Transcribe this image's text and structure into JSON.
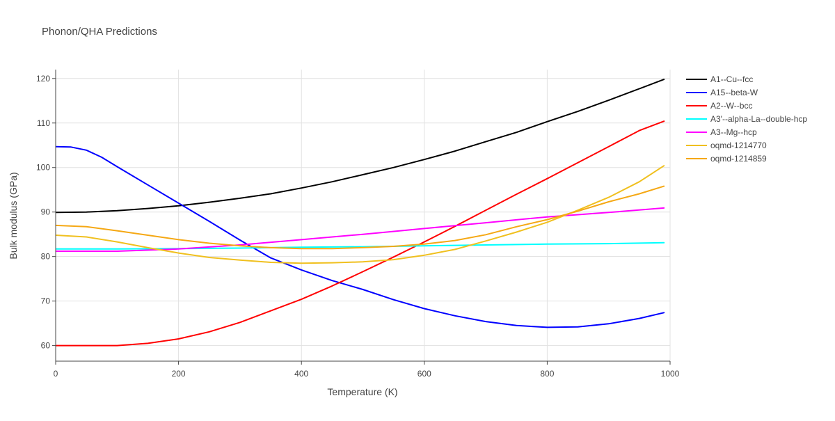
{
  "chart_data": {
    "type": "line",
    "title": "Phonon/QHA Predictions",
    "xlabel": "Temperature (K)",
    "ylabel": "Bulk modulus (GPa)",
    "xlim": [
      0,
      1000
    ],
    "ylim": [
      56.5,
      122
    ],
    "xticks": [
      0,
      200,
      400,
      600,
      800,
      1000
    ],
    "yticks": [
      60,
      70,
      80,
      90,
      100,
      110,
      120
    ],
    "grid": true,
    "legend_position": "right",
    "series": [
      {
        "name": "A1--Cu--fcc",
        "color": "#000000",
        "x": [
          0,
          50,
          100,
          150,
          200,
          250,
          300,
          350,
          400,
          450,
          500,
          550,
          600,
          650,
          700,
          750,
          800,
          850,
          900,
          950,
          990
        ],
        "y": [
          89.9,
          90.0,
          90.3,
          90.8,
          91.4,
          92.2,
          93.1,
          94.1,
          95.4,
          96.8,
          98.4,
          100.0,
          101.8,
          103.7,
          105.8,
          107.9,
          110.3,
          112.6,
          115.1,
          117.7,
          119.8
        ]
      },
      {
        "name": "A15--beta-W",
        "color": "#0000ff",
        "x": [
          0,
          25,
          50,
          75,
          100,
          150,
          200,
          250,
          300,
          350,
          400,
          450,
          500,
          550,
          600,
          650,
          700,
          750,
          800,
          850,
          900,
          950,
          990
        ],
        "y": [
          104.7,
          104.6,
          103.9,
          102.3,
          100.2,
          96.1,
          92.0,
          87.9,
          83.7,
          79.7,
          77.0,
          74.6,
          72.6,
          70.3,
          68.3,
          66.7,
          65.4,
          64.5,
          64.1,
          64.2,
          64.9,
          66.1,
          67.4
        ]
      },
      {
        "name": "A2--W--bcc",
        "color": "#ff0000",
        "x": [
          0,
          50,
          100,
          150,
          200,
          250,
          300,
          350,
          400,
          450,
          500,
          550,
          600,
          650,
          700,
          750,
          800,
          850,
          900,
          950,
          990
        ],
        "y": [
          60.0,
          60.0,
          60.0,
          60.5,
          61.5,
          63.1,
          65.2,
          67.8,
          70.4,
          73.4,
          76.6,
          79.9,
          83.3,
          86.8,
          90.4,
          94.0,
          97.5,
          101.1,
          104.7,
          108.3,
          110.4
        ]
      },
      {
        "name": "A3'--alpha-La--double-hcp",
        "color": "#00ffff",
        "x": [
          0,
          100,
          200,
          300,
          400,
          500,
          600,
          700,
          800,
          900,
          990
        ],
        "y": [
          81.7,
          81.7,
          81.8,
          81.9,
          82.1,
          82.2,
          82.4,
          82.6,
          82.8,
          82.9,
          83.1
        ]
      },
      {
        "name": "A3--Mg--hcp",
        "color": "#ff00ff",
        "x": [
          0,
          100,
          200,
          300,
          400,
          500,
          600,
          700,
          800,
          900,
          990
        ],
        "y": [
          81.2,
          81.2,
          81.7,
          82.6,
          83.8,
          85.0,
          86.3,
          87.6,
          88.9,
          89.9,
          90.9
        ]
      },
      {
        "name": "oqmd-1214770",
        "color": "#f0c01f",
        "x": [
          0,
          50,
          100,
          150,
          200,
          250,
          300,
          350,
          400,
          450,
          500,
          550,
          600,
          650,
          700,
          750,
          800,
          850,
          900,
          950,
          990
        ],
        "y": [
          84.8,
          84.4,
          83.3,
          82.0,
          80.8,
          79.8,
          79.2,
          78.7,
          78.5,
          78.6,
          78.8,
          79.3,
          80.3,
          81.6,
          83.5,
          85.5,
          87.7,
          90.4,
          93.3,
          96.8,
          100.4
        ]
      },
      {
        "name": "oqmd-1214859",
        "color": "#f5a814",
        "x": [
          0,
          50,
          100,
          150,
          200,
          250,
          300,
          350,
          400,
          450,
          500,
          550,
          600,
          650,
          700,
          750,
          800,
          850,
          900,
          950,
          990
        ],
        "y": [
          87.0,
          86.7,
          85.8,
          84.8,
          83.8,
          83.0,
          82.4,
          82.0,
          81.8,
          81.8,
          82.0,
          82.3,
          82.8,
          83.6,
          84.9,
          86.7,
          88.3,
          90.2,
          92.3,
          94.1,
          95.8
        ]
      }
    ]
  }
}
